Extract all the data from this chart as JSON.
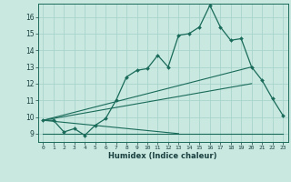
{
  "xlabel": "Humidex (Indice chaleur)",
  "background_color": "#c8e8e0",
  "grid_color": "#a8d4cc",
  "line_color": "#1a6b5a",
  "xlim": [
    -0.5,
    23.5
  ],
  "ylim": [
    8.5,
    16.8
  ],
  "xticks": [
    0,
    1,
    2,
    3,
    4,
    5,
    6,
    7,
    8,
    9,
    10,
    11,
    12,
    13,
    14,
    15,
    16,
    17,
    18,
    19,
    20,
    21,
    22,
    23
  ],
  "yticks": [
    9,
    10,
    11,
    12,
    13,
    14,
    15,
    16
  ],
  "main_x": [
    0,
    1,
    2,
    3,
    4,
    5,
    6,
    7,
    8,
    9,
    10,
    11,
    12,
    13,
    14,
    15,
    16,
    17,
    18,
    19,
    20,
    21,
    22,
    23
  ],
  "main_y": [
    9.8,
    9.8,
    9.1,
    9.3,
    8.9,
    9.5,
    9.9,
    11.0,
    12.4,
    12.8,
    12.9,
    13.7,
    13.0,
    14.9,
    15.0,
    15.4,
    16.7,
    15.4,
    14.6,
    14.7,
    13.0,
    12.2,
    11.1,
    10.1
  ],
  "line1_x": [
    0,
    13
  ],
  "line1_y": [
    9.8,
    9.0
  ],
  "line2_x": [
    0,
    20
  ],
  "line2_y": [
    9.8,
    13.0
  ],
  "line3_x": [
    0,
    20
  ],
  "line3_y": [
    9.8,
    12.0
  ],
  "line4_x": [
    0,
    23
  ],
  "line4_y": [
    9.0,
    9.0
  ]
}
